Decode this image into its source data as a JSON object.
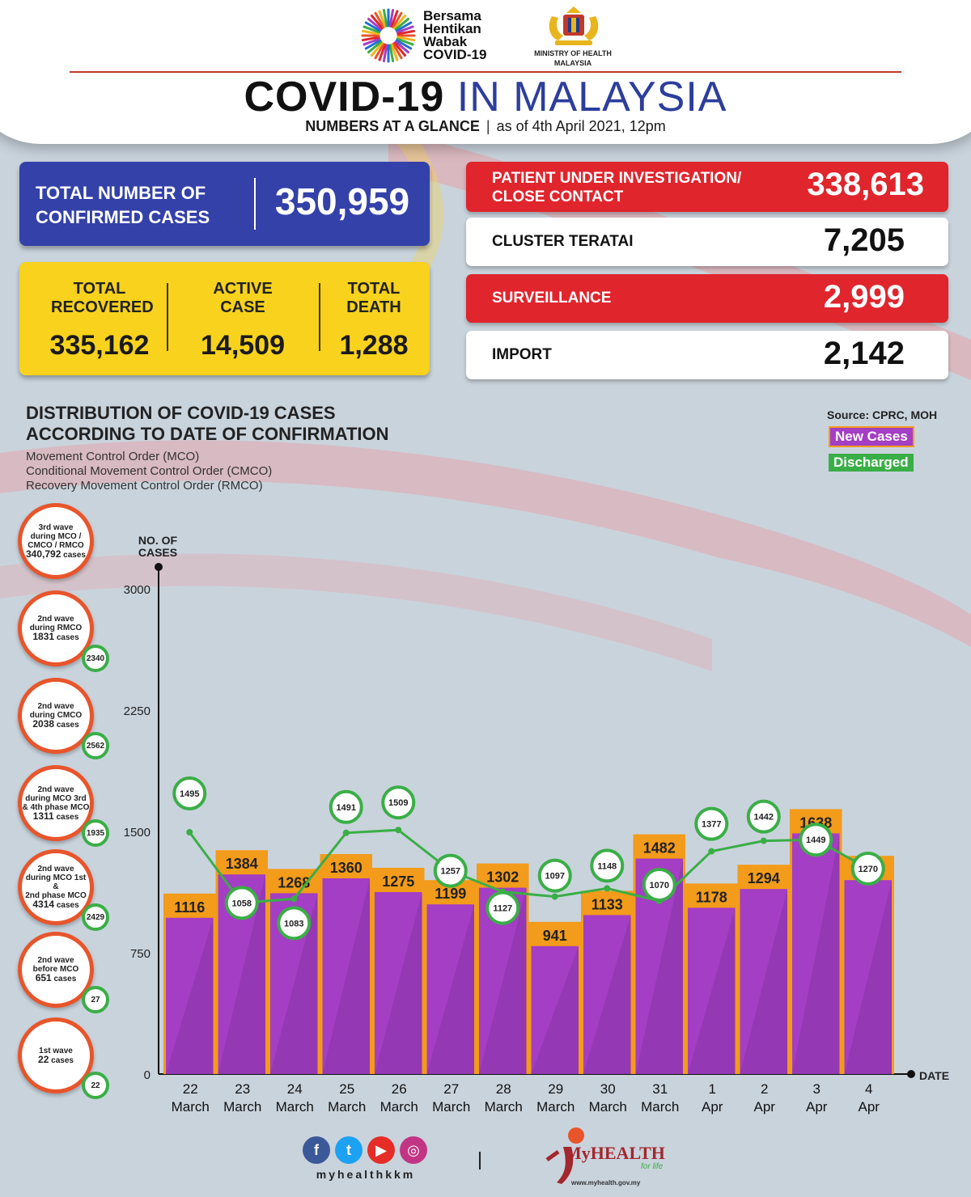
{
  "header": {
    "logo_text_lines": [
      "Bersama",
      "Hentikan",
      "Wabak",
      "COVID-19"
    ],
    "ministry_lines": [
      "MINISTRY OF HEALTH",
      "MALAYSIA"
    ],
    "title_part1": "COVID-19",
    "title_part2": "IN MALAYSIA",
    "subtitle_bold": "NUMBERS AT A GLANCE",
    "subtitle_separator": "|",
    "subtitle_date": "as of 4th April 2021, 12pm"
  },
  "summary": {
    "confirmed_label": "TOTAL NUMBER OF CONFIRMED CASES",
    "confirmed_value": "350,959",
    "recovered_label": "TOTAL RECOVERED",
    "recovered_value": "335,162",
    "active_label": "ACTIVE CASE",
    "active_value": "14,509",
    "death_label": "TOTAL DEATH",
    "death_value": "1,288"
  },
  "right_boxes": [
    {
      "label": "PATIENT UNDER INVESTIGATION/ CLOSE CONTACT",
      "value": "338,613",
      "style": "red"
    },
    {
      "label": "CLUSTER TERATAI",
      "value": "7,205",
      "style": "white"
    },
    {
      "label": "SURVEILLANCE",
      "value": "2,999",
      "style": "red"
    },
    {
      "label": "IMPORT",
      "value": "2,142",
      "style": "white"
    }
  ],
  "distribution": {
    "title_line1": "DISTRIBUTION OF COVID-19 CASES",
    "title_line2": "ACCORDING TO DATE OF CONFIRMATION",
    "notes": [
      "Movement Control Order (MCO)",
      "Conditional Movement Control Order (CMCO)",
      "Recovery Movement Control Order (RMCO)"
    ],
    "source": "Source: CPRC, MOH",
    "legend_new": "New Cases",
    "legend_discharged": "Discharged"
  },
  "waves": [
    {
      "line1": "3rd wave",
      "line2": "during MCO /",
      "line3": "CMCO / RMCO",
      "count": "340,792",
      "unit": "cases",
      "badge": ""
    },
    {
      "line1": "2nd wave",
      "line2": "during RMCO",
      "line3": "",
      "count": "1831",
      "unit": "cases",
      "badge": "2340"
    },
    {
      "line1": "2nd wave",
      "line2": "during CMCO",
      "line3": "",
      "count": "2038",
      "unit": "cases",
      "badge": "2562"
    },
    {
      "line1": "2nd wave",
      "line2": "during MCO 3rd",
      "line3": "& 4th phase MCO",
      "count": "1311",
      "unit": "cases",
      "badge": "1935"
    },
    {
      "line1": "2nd wave",
      "line2": "during MCO 1st &",
      "line3": "2nd phase MCO",
      "count": "4314",
      "unit": "cases",
      "badge": "2429"
    },
    {
      "line1": "2nd wave",
      "line2": "before MCO",
      "line3": "",
      "count": "651",
      "unit": "cases",
      "badge": "27"
    },
    {
      "line1": "1st wave",
      "line2": "",
      "line3": "",
      "count": "22",
      "unit": "cases",
      "badge": "22"
    }
  ],
  "chart_data": {
    "type": "bar",
    "title": "DISTRIBUTION OF COVID-19 CASES ACCORDING TO DATE OF CONFIRMATION",
    "xlabel": "DATE",
    "ylabel": "NO. OF CASES",
    "ylim": [
      0,
      3000
    ],
    "yticks": [
      0,
      750,
      1500,
      2250,
      3000
    ],
    "categories": [
      [
        "22",
        "March"
      ],
      [
        "23",
        "March"
      ],
      [
        "24",
        "March"
      ],
      [
        "25",
        "March"
      ],
      [
        "26",
        "March"
      ],
      [
        "27",
        "March"
      ],
      [
        "28",
        "March"
      ],
      [
        "29",
        "March"
      ],
      [
        "30",
        "March"
      ],
      [
        "31",
        "March"
      ],
      [
        "1",
        "Apr"
      ],
      [
        "2",
        "Apr"
      ],
      [
        "3",
        "Apr"
      ],
      [
        "4",
        "Apr"
      ]
    ],
    "series": [
      {
        "name": "New Cases",
        "type": "bar",
        "color": "#a43ec4",
        "values": [
          1116,
          1384,
          1268,
          1360,
          1275,
          1199,
          1302,
          941,
          1133,
          1482,
          1178,
          1294,
          1638,
          1349
        ]
      },
      {
        "name": "Discharged",
        "type": "line",
        "color": "#3aae46",
        "values": [
          1495,
          1058,
          1083,
          1491,
          1509,
          1257,
          1127,
          1097,
          1148,
          1070,
          1377,
          1442,
          1449,
          1270
        ]
      }
    ],
    "label_color": "#f39b1a",
    "grid": false
  },
  "footer": {
    "social_icons": [
      "facebook-icon",
      "twitter-icon",
      "youtube-icon",
      "instagram-icon"
    ],
    "handle": "myhealthkkm",
    "brand": "MyHEALTH",
    "tagline": "for life",
    "url": "www.myhealth.gov.my"
  }
}
